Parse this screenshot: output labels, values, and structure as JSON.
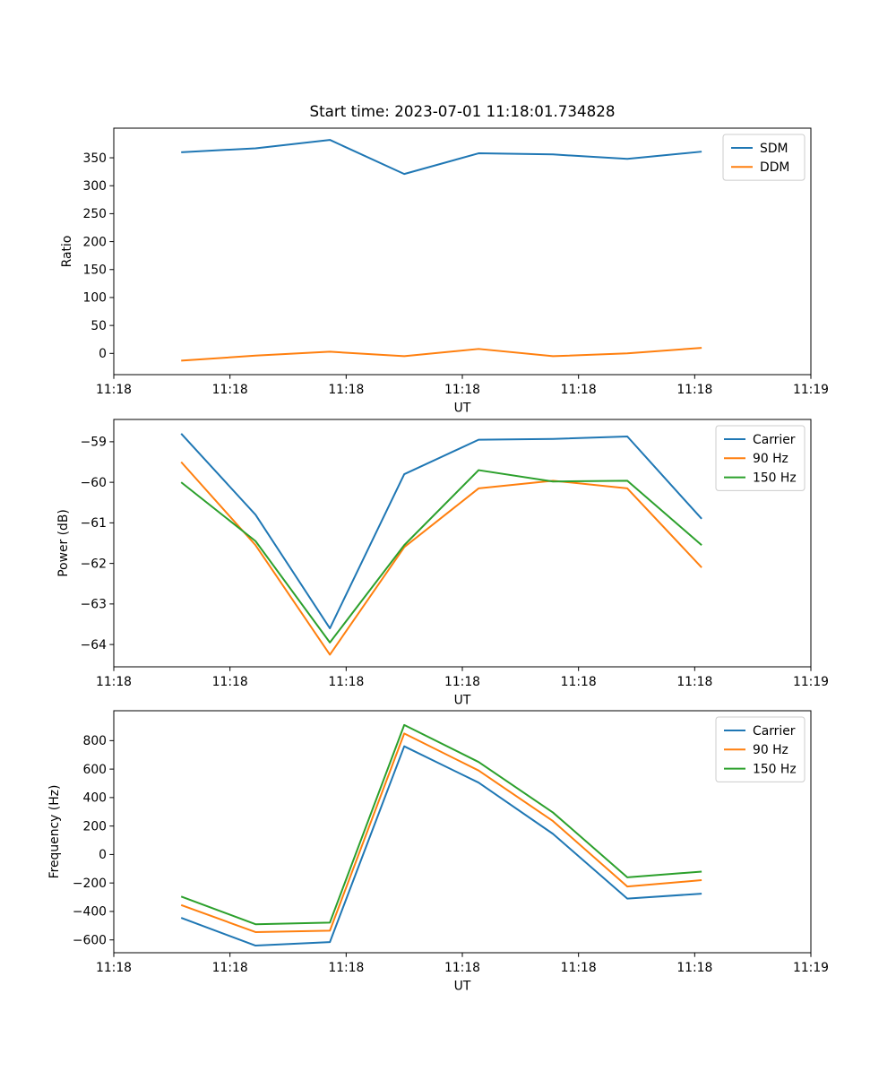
{
  "figure": {
    "title": "Start time: 2023-07-01 11:18:01.734828",
    "background": "#ffffff"
  },
  "chart_data": [
    {
      "name": "ratio",
      "type": "line",
      "title": "",
      "xlabel": "UT",
      "ylabel": "Ratio",
      "x": [
        5.8,
        12.2,
        18.6,
        25.0,
        31.4,
        37.8,
        44.2,
        50.6
      ],
      "xlim": [
        0,
        60
      ],
      "xticks": [
        0,
        10,
        20,
        30,
        40,
        50,
        60
      ],
      "xtick_labels": [
        "11:18",
        "11:18",
        "11:18",
        "11:18",
        "11:18",
        "11:18",
        "11:19"
      ],
      "yticks": [
        0,
        50,
        100,
        150,
        200,
        250,
        300,
        350
      ],
      "ytick_labels": [
        "0",
        "50",
        "100",
        "150",
        "200",
        "250",
        "300",
        "350"
      ],
      "ylim": [
        -38,
        403
      ],
      "grid": false,
      "legend_position": "upper right",
      "series": [
        {
          "name": "SDM",
          "color": "#1f77b4",
          "values": [
            360,
            367,
            382,
            321,
            358,
            356,
            348,
            361
          ]
        },
        {
          "name": "DDM",
          "color": "#ff7f0e",
          "values": [
            -13,
            -4,
            3,
            -5,
            8,
            -5,
            0,
            10
          ]
        }
      ]
    },
    {
      "name": "power",
      "type": "line",
      "title": "",
      "xlabel": "UT",
      "ylabel": "Power (dB)",
      "x": [
        5.8,
        12.2,
        18.6,
        25.0,
        31.4,
        37.8,
        44.2,
        50.6
      ],
      "xlim": [
        0,
        60
      ],
      "xticks": [
        0,
        10,
        20,
        30,
        40,
        50,
        60
      ],
      "xtick_labels": [
        "11:18",
        "11:18",
        "11:18",
        "11:18",
        "11:18",
        "11:18",
        "11:19"
      ],
      "yticks": [
        -64,
        -63,
        -62,
        -61,
        -60,
        -59
      ],
      "ytick_labels": [
        "−64",
        "−63",
        "−62",
        "−61",
        "−60",
        "−59"
      ],
      "ylim": [
        -64.55,
        -58.45
      ],
      "grid": false,
      "legend_position": "upper right",
      "series": [
        {
          "name": "Carrier",
          "color": "#1f77b4",
          "values": [
            -58.8,
            -60.8,
            -63.6,
            -59.8,
            -58.95,
            -58.93,
            -58.87,
            -60.9
          ]
        },
        {
          "name": "90 Hz",
          "color": "#ff7f0e",
          "values": [
            -59.5,
            -61.55,
            -64.25,
            -61.6,
            -60.15,
            -59.96,
            -60.15,
            -62.1
          ]
        },
        {
          "name": "150 Hz",
          "color": "#2ca02c",
          "values": [
            -60.0,
            -61.45,
            -63.95,
            -61.55,
            -59.7,
            -59.98,
            -59.96,
            -61.55
          ]
        }
      ]
    },
    {
      "name": "frequency",
      "type": "line",
      "title": "",
      "xlabel": "UT",
      "ylabel": "Frequency (Hz)",
      "x": [
        5.8,
        12.2,
        18.6,
        25.0,
        31.4,
        37.8,
        44.2,
        50.6
      ],
      "xlim": [
        0,
        60
      ],
      "xticks": [
        0,
        10,
        20,
        30,
        40,
        50,
        60
      ],
      "xtick_labels": [
        "11:18",
        "11:18",
        "11:18",
        "11:18",
        "11:18",
        "11:18",
        "11:19"
      ],
      "yticks": [
        -600,
        -400,
        -200,
        0,
        200,
        400,
        600,
        800
      ],
      "ytick_labels": [
        "−600",
        "−400",
        "−200",
        "0",
        "200",
        "400",
        "600",
        "800"
      ],
      "ylim": [
        -690,
        1010
      ],
      "grid": false,
      "legend_position": "upper right",
      "series": [
        {
          "name": "Carrier",
          "color": "#1f77b4",
          "values": [
            -445,
            -640,
            -615,
            760,
            505,
            145,
            -310,
            -275
          ]
        },
        {
          "name": "90 Hz",
          "color": "#ff7f0e",
          "values": [
            -355,
            -545,
            -535,
            850,
            590,
            235,
            -225,
            -180
          ]
        },
        {
          "name": "150 Hz",
          "color": "#2ca02c",
          "values": [
            -295,
            -490,
            -478,
            910,
            650,
            295,
            -160,
            -120
          ]
        }
      ]
    }
  ]
}
